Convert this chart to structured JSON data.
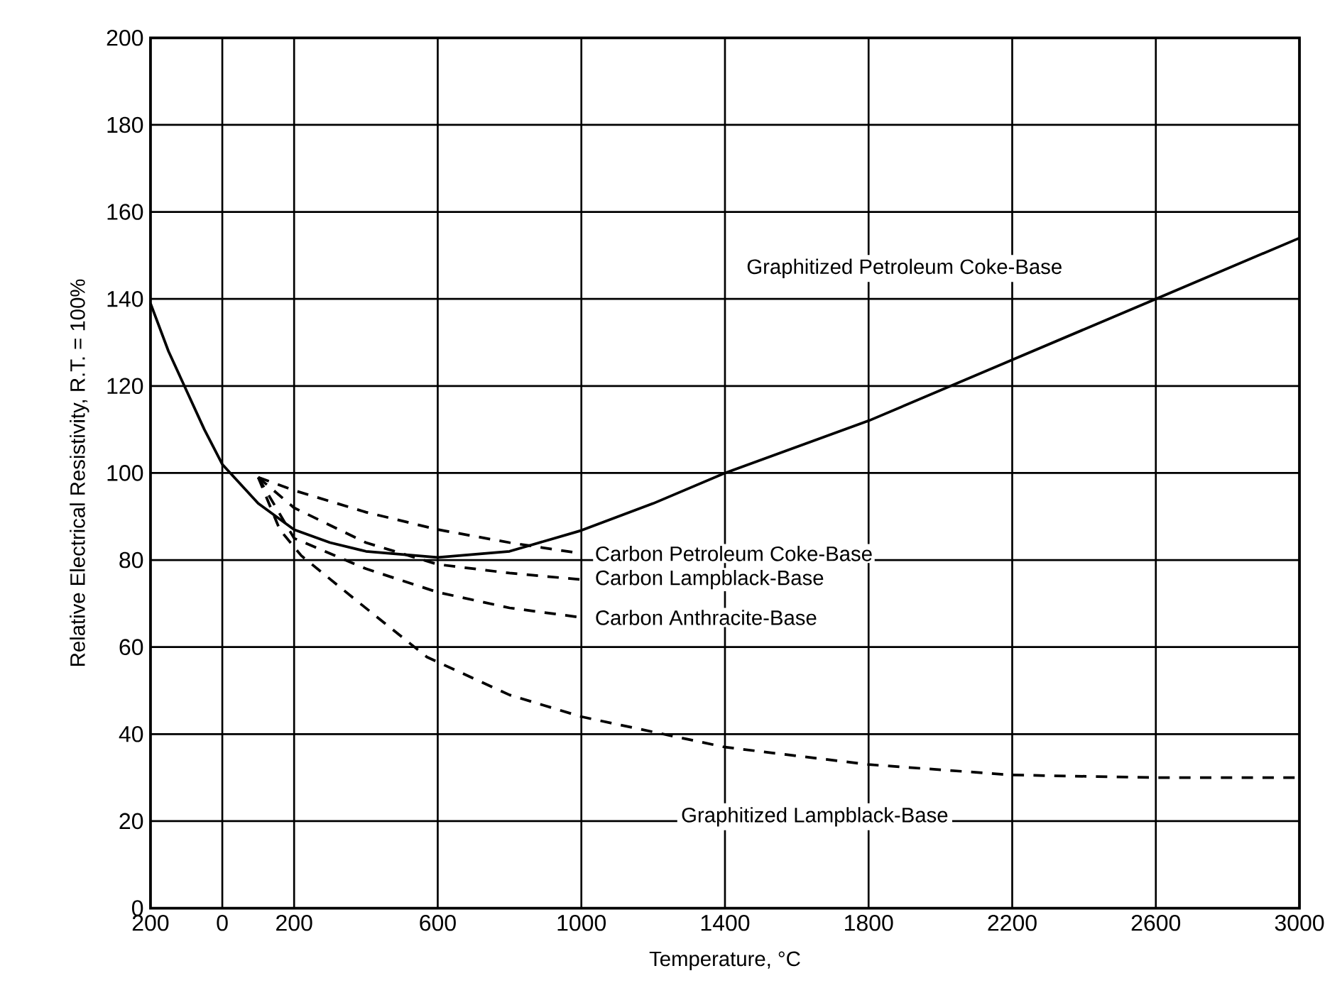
{
  "chart_data": {
    "type": "line",
    "xlabel": "Temperature, °C",
    "ylabel": "Relative Electrical Resistivity, R.T. = 100%",
    "xlim": [
      -200,
      3000
    ],
    "ylim": [
      0,
      200
    ],
    "xticks": [
      {
        "value": -200,
        "label": "200"
      },
      0,
      200,
      600,
      1000,
      1400,
      1800,
      2200,
      2600,
      3000
    ],
    "yticks": [
      0,
      20,
      40,
      60,
      80,
      100,
      120,
      140,
      160,
      180,
      200
    ],
    "grid": true,
    "series": [
      {
        "name": "Graphitized Petroleum Coke-Base",
        "color": "#000000",
        "line_style": "solid",
        "x": [
          -200,
          -150,
          -100,
          -50,
          0,
          100,
          200,
          300,
          400,
          600,
          800,
          1000,
          1200,
          1400,
          1800,
          2200,
          2600,
          3000
        ],
        "values": [
          139,
          128,
          119,
          110,
          102,
          93,
          87,
          84,
          82,
          80.6,
          82,
          86.8,
          93,
          100,
          112,
          126,
          140,
          154
        ]
      },
      {
        "name": "Carbon Petroleum Coke-Base",
        "color": "#000000",
        "line_style": "dashed",
        "x": [
          100,
          200,
          400,
          600,
          800,
          1000
        ],
        "values": [
          99,
          96,
          91,
          87,
          84,
          81.5
        ]
      },
      {
        "name": "Carbon Lampblack-Base",
        "color": "#000000",
        "line_style": "dashed",
        "x": [
          100,
          200,
          400,
          600,
          800,
          1000
        ],
        "values": [
          99,
          92,
          84,
          79,
          77,
          75.5
        ]
      },
      {
        "name": "Carbon Anthracite-Base",
        "color": "#000000",
        "line_style": "dashed",
        "x": [
          100,
          200,
          400,
          600,
          800,
          1000
        ],
        "values": [
          99,
          85,
          78,
          72.6,
          69,
          66.8
        ]
      },
      {
        "name": "Graphitized Lampblack-Base",
        "color": "#000000",
        "line_style": "dashed",
        "x": [
          100,
          160,
          220,
          360,
          570,
          800,
          1000,
          1400,
          1800,
          2200,
          2600,
          3000
        ],
        "values": [
          99,
          87,
          81,
          71.6,
          57.7,
          49,
          44,
          37,
          33,
          30.6,
          30,
          30
        ]
      }
    ]
  }
}
